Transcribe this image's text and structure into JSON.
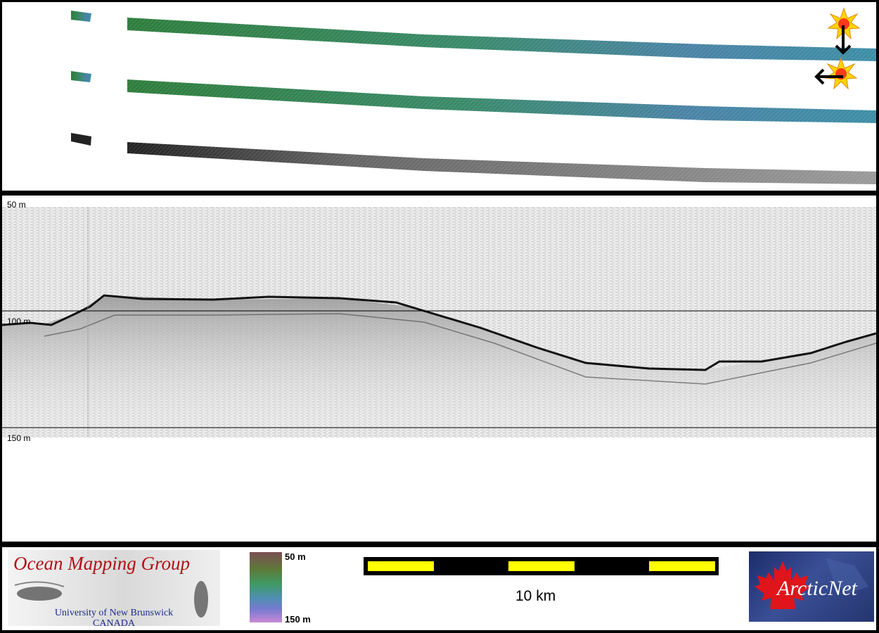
{
  "profile": {
    "depth_labels": {
      "top": "50 m",
      "mid": "100 m",
      "bottom": "150 m"
    }
  },
  "legend": {
    "logo_title": "Ocean Mapping Group",
    "logo_sub1": "University of New Brunswick",
    "logo_sub2": "CANADA",
    "colorbar_top": "50 m",
    "colorbar_bottom": "150 m",
    "scale_label": "10 km",
    "partner_logo": "ArcticNet"
  },
  "icons": {
    "sun_icon": "sun-icon",
    "arrow_down": "arrow-down-icon",
    "arrow_left": "arrow-left-icon"
  },
  "colors": {
    "scale_yellow": "#ffff00",
    "logo_red": "#b01217",
    "logo_blue": "#1c2b8a"
  }
}
